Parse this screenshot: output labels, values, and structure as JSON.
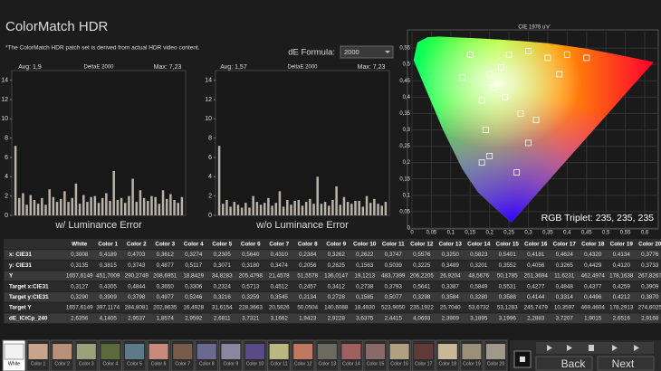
{
  "header": {
    "title": "ColorMatch HDR",
    "note": "*The ColorMatch HDR patch set is derived from actual HDR video content.",
    "formula_label": "dE Formula:",
    "formula_value": "2000"
  },
  "charts": [
    {
      "type": "bar",
      "avg": "Avg: 1,9",
      "metric": "DeltaE 2000",
      "max": "Max: 7,23",
      "title": "w/ Luminance Error",
      "ylim": [
        0,
        15
      ],
      "yticks": [
        0,
        2,
        4,
        6,
        8,
        10,
        12,
        14
      ],
      "color": "#b9b2a8",
      "values": [
        7.2,
        1.8,
        2.3,
        1.1,
        2.1,
        1.6,
        1.2,
        1.8,
        1.1,
        2.7,
        1.9,
        1.4,
        1.7,
        2.5,
        1.4,
        1.8,
        3.3,
        1.2,
        2.1,
        1.4,
        1.9,
        2.0,
        1.3,
        1.8,
        2.3,
        1.5,
        4.6,
        1.6,
        1.8,
        1.3,
        2.0,
        3.8,
        1.4,
        2.6,
        1.8,
        1.5,
        2.0,
        1.9,
        1.2,
        2.6,
        1.7,
        2.2,
        1.6,
        1.3,
        1.9
      ]
    },
    {
      "type": "bar",
      "avg": "Avg: 1,57",
      "metric": "DeltaE 2000",
      "max": "Max: 7,23",
      "title": "w/o Luminance Error",
      "ylim": [
        0,
        15
      ],
      "yticks": [
        0,
        2,
        4,
        6,
        8,
        10,
        12,
        14
      ],
      "color": "#b9b2a8",
      "values": [
        7.2,
        1.2,
        1.6,
        0.9,
        1.4,
        1.1,
        0.8,
        1.3,
        0.8,
        2.0,
        1.4,
        1.1,
        1.3,
        1.8,
        1.0,
        1.3,
        2.5,
        0.9,
        1.6,
        1.1,
        1.5,
        1.6,
        1.0,
        1.4,
        1.7,
        1.2,
        4.0,
        1.2,
        1.4,
        1.0,
        1.6,
        3.0,
        1.1,
        1.9,
        1.4,
        1.2,
        1.5,
        1.5,
        0.9,
        2.0,
        1.3,
        1.7,
        1.2,
        1.0,
        1.4
      ]
    }
  ],
  "cie": {
    "title": "CIE 1976 u'v'",
    "xlim": [
      0,
      0.635
    ],
    "ylim": [
      0,
      0.6
    ],
    "xticks": [
      0,
      {
        "value": 0.05,
        "label": "0,05"
      },
      {
        "value": 0.1,
        "label": "0,1"
      },
      {
        "value": 0.15,
        "label": "0,15"
      },
      {
        "value": 0.2,
        "label": "0,2"
      },
      {
        "value": 0.25,
        "label": "0,25"
      },
      {
        "value": 0.3,
        "label": "0,3"
      },
      {
        "value": 0.35,
        "label": "0,35"
      },
      {
        "value": 0.4,
        "label": "0,4"
      },
      {
        "value": 0.45,
        "label": "0,45"
      },
      {
        "value": 0.5,
        "label": "0,5"
      },
      {
        "value": 0.55,
        "label": "0,55"
      },
      {
        "value": 0.6,
        "label": "0,6"
      }
    ],
    "yticks": [
      0,
      {
        "value": 0.05,
        "label": "0,05"
      },
      {
        "value": 0.1,
        "label": "0,1"
      },
      {
        "value": 0.15,
        "label": "0,15"
      },
      {
        "value": 0.2,
        "label": "0,2"
      },
      {
        "value": 0.25,
        "label": "0,25"
      },
      {
        "value": 0.3,
        "label": "0,3"
      },
      {
        "value": 0.35,
        "label": "0,35"
      },
      {
        "value": 0.4,
        "label": "0,4"
      },
      {
        "value": 0.45,
        "label": "0,45"
      },
      {
        "value": 0.5,
        "label": "0,5"
      },
      {
        "value": 0.55,
        "label": "0,55"
      }
    ],
    "triplet": "RGB Triplet: 235, 235, 235"
  },
  "table": {
    "columns": [
      "White",
      "Color 1",
      "Color 2",
      "Color 3",
      "Color 4",
      "Color 5",
      "Color 6",
      "Color 7",
      "Color 8",
      "Color 9",
      "Color 10",
      "Color 11",
      "Color 12",
      "Color 13",
      "Color 14",
      "Color 15",
      "Color 16",
      "Color 17",
      "Color 18",
      "Color 19",
      "Color 20"
    ],
    "rows": [
      {
        "label": "x: CIE31",
        "cells": [
          "0,3008",
          "0,4189",
          "0,4703",
          "0,3612",
          "0,3274",
          "0,2305",
          "0,5640",
          "0,4310",
          "0,2384",
          "0,3262",
          "0,2622",
          "0,3747",
          "0,5576",
          "0,3250",
          "0,5823",
          "0,5401",
          "0,4181",
          "0,4624",
          "0,4320",
          "0,4134",
          "0,3776"
        ]
      },
      {
        "label": "y: CIE31",
        "cells": [
          "0,3135",
          "0,3815",
          "0,3743",
          "0,4877",
          "0,5117",
          "0,3071",
          "0,3180",
          "0,3474",
          "0,2056",
          "0,2625",
          "0,1563",
          "0,5039",
          "0,3225",
          "0,3489",
          "0,3201",
          "0,3552",
          "0,4056",
          "0,3265",
          "0,4429",
          "0,4120",
          "0,3733"
        ]
      },
      {
        "label": "Y",
        "cells": [
          "1657,6149",
          "451,7009",
          "290,2749",
          "208,6951",
          "18,8429",
          "34,8283",
          "205,4798",
          "21,4578",
          "51,5578",
          "136,0147",
          "19,1213",
          "483,7399",
          "206,2205",
          "26,9204",
          "48,5676",
          "50,1785",
          "251,3694",
          "11,6231",
          "462,4974",
          "178,1638",
          "267,8267"
        ]
      },
      {
        "label": "Target x:CIE31",
        "cells": [
          "0,3127",
          "0,4305",
          "0,4844",
          "0,3650",
          "0,3306",
          "0,2324",
          "0,5713",
          "0,4512",
          "0,2457",
          "0,3412",
          "0,2738",
          "0,3793",
          "0,5641",
          "0,3387",
          "0,5849",
          "0,5531",
          "0,4277",
          "0,4848",
          "0,4377",
          "0,4259",
          "0,3909"
        ]
      },
      {
        "label": "Target y:CIE31",
        "cells": [
          "0,3290",
          "0,3909",
          "0,3798",
          "0,4977",
          "0,5246",
          "0,3216",
          "0,3259",
          "0,3545",
          "0,2134",
          "0,2728",
          "0,1585",
          "0,5077",
          "0,3298",
          "0,3584",
          "0,3280",
          "0,3588",
          "0,4144",
          "0,3314",
          "0,4496",
          "0,4212",
          "0,3870"
        ]
      },
      {
        "label": "Target Y",
        "cells": [
          "1657,6149",
          "397,1174",
          "284,8081",
          "202,8635",
          "16,4928",
          "31,6154",
          "228,3663",
          "20,5826",
          "50,0504",
          "140,6088",
          "18,4930",
          "523,9050",
          "235,1922",
          "25,7040",
          "53,6732",
          "53,1283",
          "245,7479",
          "10,3597",
          "469,4604",
          "178,2913",
          "274,6025"
        ]
      },
      {
        "label": "dE_ICtCp_240",
        "cells": [
          "2,6356",
          "4,1405",
          "2,9537",
          "1,8574",
          "2,9592",
          "2,6811",
          "3,7321",
          "3,1662",
          "1,9423",
          "2,9228",
          "3,6375",
          "2,4415",
          "4,0693",
          "2,3909",
          "3,1895",
          "3,1996",
          "2,2883",
          "3,7207",
          "1,9015",
          "2,6516",
          "2,9168"
        ]
      }
    ]
  },
  "patches": [
    {
      "label": "White",
      "color": "#f2f2f2"
    },
    {
      "label": "Color 1",
      "color": "#c9a48c"
    },
    {
      "label": "Color 2",
      "color": "#b8907a"
    },
    {
      "label": "Color 3",
      "color": "#9aa27a"
    },
    {
      "label": "Color 4",
      "color": "#5a6a3c"
    },
    {
      "label": "Color 5",
      "color": "#5c7a8a"
    },
    {
      "label": "Color 6",
      "color": "#c88a7a"
    },
    {
      "label": "Color 7",
      "color": "#7a5a48"
    },
    {
      "label": "Color 8",
      "color": "#6a6a90"
    },
    {
      "label": "Color 9",
      "color": "#8a86a0"
    },
    {
      "label": "Color 10",
      "color": "#5a4a8a"
    },
    {
      "label": "Color 11",
      "color": "#b8b880"
    },
    {
      "label": "Color 12",
      "color": "#c07860"
    },
    {
      "label": "Color 13",
      "color": "#6a6a60"
    },
    {
      "label": "Color 14",
      "color": "#a06060"
    },
    {
      "label": "Color 15",
      "color": "#8a6a68"
    },
    {
      "label": "Color 16",
      "color": "#b0a080"
    },
    {
      "label": "Color 17",
      "color": "#603a38"
    },
    {
      "label": "Color 18",
      "color": "#c8b898"
    },
    {
      "label": "Color 19",
      "color": "#9a9078"
    },
    {
      "label": "Color 20",
      "color": "#a0988a"
    }
  ],
  "controls": {
    "back": "Back",
    "next": "Next"
  }
}
